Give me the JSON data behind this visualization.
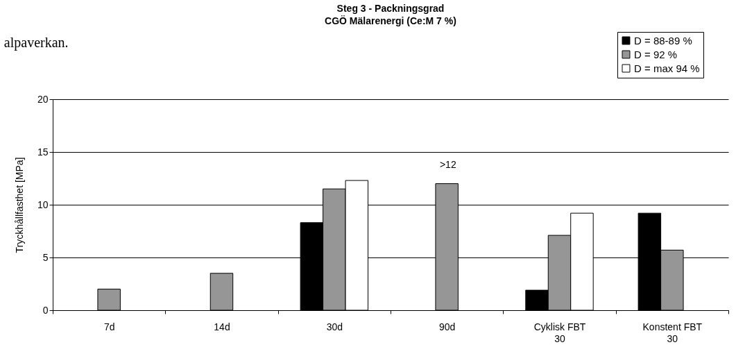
{
  "chart_data": {
    "type": "bar",
    "title": "Steg 3 - Packningsgrad",
    "subtitle": "CGÖ Mälarenergi (Ce:M 7 %)",
    "ylabel": "Tryckhållfasthet [MPa]",
    "categories": [
      "7d",
      "14d",
      "30d",
      "90d",
      "Cyklisk FBT 30",
      "Konstent FBT 30"
    ],
    "series": [
      {
        "name": "D = 88-89 %",
        "color": "#000000",
        "values": [
          null,
          null,
          8.3,
          null,
          1.9,
          9.2
        ]
      },
      {
        "name": "D = 92 %",
        "color": "#969696",
        "values": [
          2.0,
          3.5,
          11.5,
          12.0,
          7.1,
          5.7
        ]
      },
      {
        "name": "D = max 94 %",
        "color": "#ffffff",
        "values": [
          null,
          null,
          12.3,
          null,
          9.2,
          null
        ]
      }
    ],
    "ylim": [
      0,
      20
    ],
    "yticks": [
      0,
      5,
      10,
      15,
      20
    ],
    "grid": "y",
    "legend": "top right",
    "annotations": [
      ">12",
      "alpaverkan."
    ]
  }
}
